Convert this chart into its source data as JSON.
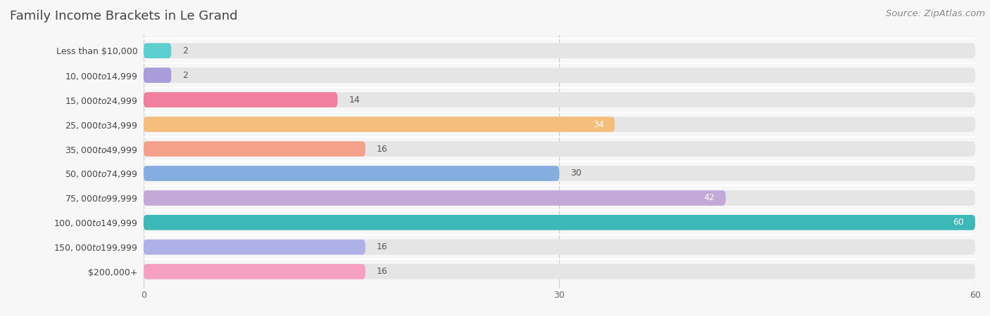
{
  "title": "Family Income Brackets in Le Grand",
  "source": "Source: ZipAtlas.com",
  "categories": [
    "Less than $10,000",
    "$10,000 to $14,999",
    "$15,000 to $24,999",
    "$25,000 to $34,999",
    "$35,000 to $49,999",
    "$50,000 to $74,999",
    "$75,000 to $99,999",
    "$100,000 to $149,999",
    "$150,000 to $199,999",
    "$200,000+"
  ],
  "values": [
    2,
    2,
    14,
    34,
    16,
    30,
    42,
    60,
    16,
    16
  ],
  "bar_colors": [
    "#5ecfcf",
    "#a89cda",
    "#f07fa0",
    "#f5be7a",
    "#f5a08a",
    "#85aee0",
    "#c3a8d8",
    "#3db8b8",
    "#b0b0e8",
    "#f5a0c0"
  ],
  "background_color": "#f7f7f7",
  "bar_bg_color": "#e5e5e5",
  "xlim": [
    0,
    60
  ],
  "xticks": [
    0,
    30,
    60
  ],
  "title_fontsize": 13,
  "source_fontsize": 9.5,
  "bar_height": 0.62,
  "value_inside_threshold": 33,
  "inside_label_color": "#ffffff",
  "outside_label_color": "#555555",
  "label_fontsize": 9,
  "tick_label_fontsize": 9
}
